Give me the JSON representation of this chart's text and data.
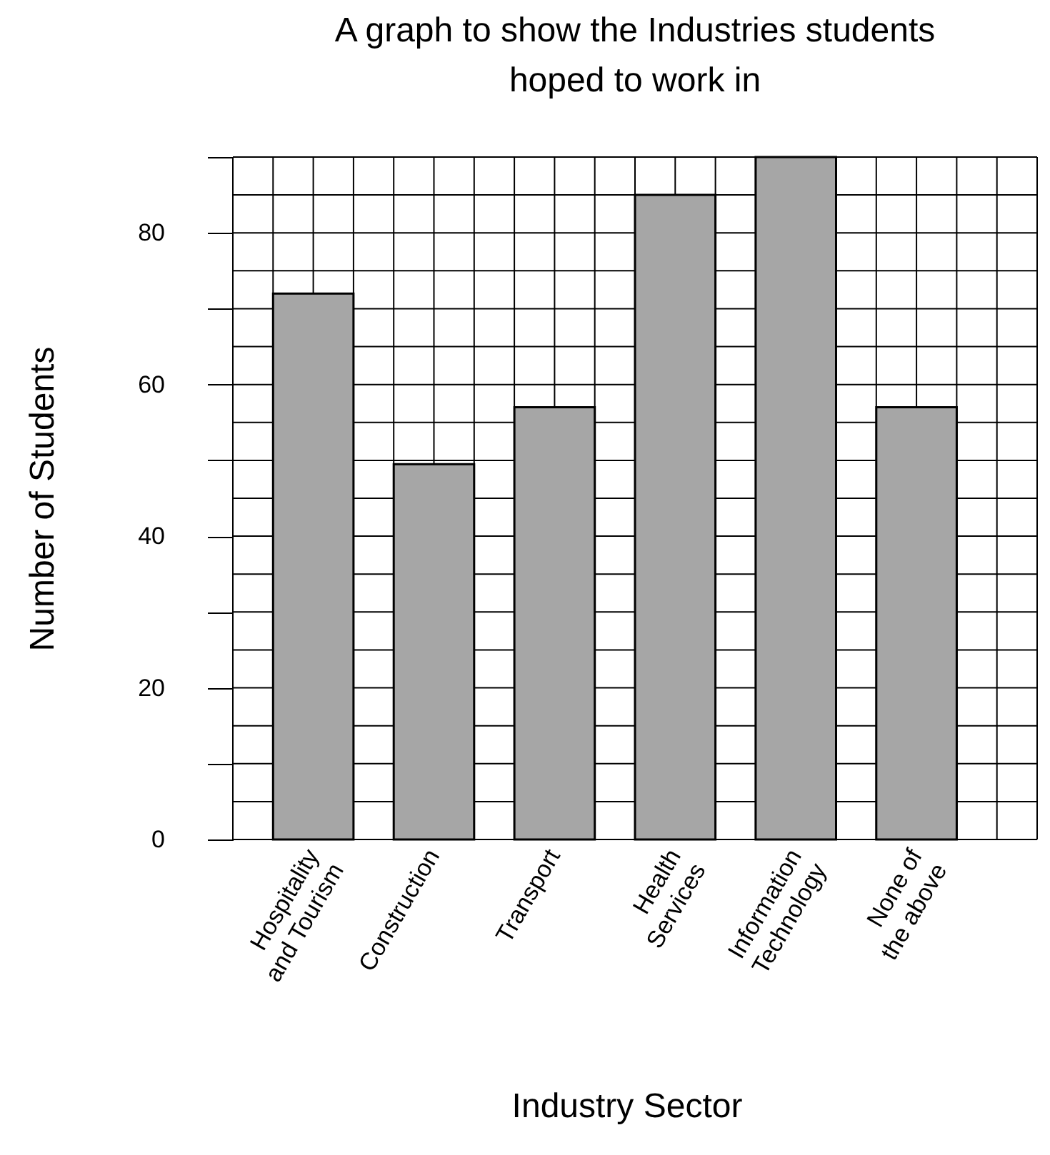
{
  "chart_data": {
    "type": "bar",
    "title": "A graph to show the Industries students\nhoped to work in",
    "xlabel": "Industry Sector",
    "ylabel": "Number of Students",
    "categories": [
      "Hospitality\nand Tourism",
      "Construction",
      "Transport",
      "Health\nServices",
      "Information\nTechnology",
      "None of\nthe above"
    ],
    "values": [
      72,
      49.5,
      57,
      85,
      90,
      57
    ],
    "color": "#a6a6a6",
    "ylim": [
      0,
      90
    ],
    "yticks": [
      0,
      {
        "value": 10,
        "label": null
      },
      20,
      {
        "value": 30,
        "label": null
      },
      40,
      {
        "value": 50,
        "label": null
      },
      60,
      {
        "value": 70,
        "label": null
      },
      80,
      {
        "value": 90,
        "label": null
      }
    ],
    "grid": true
  }
}
